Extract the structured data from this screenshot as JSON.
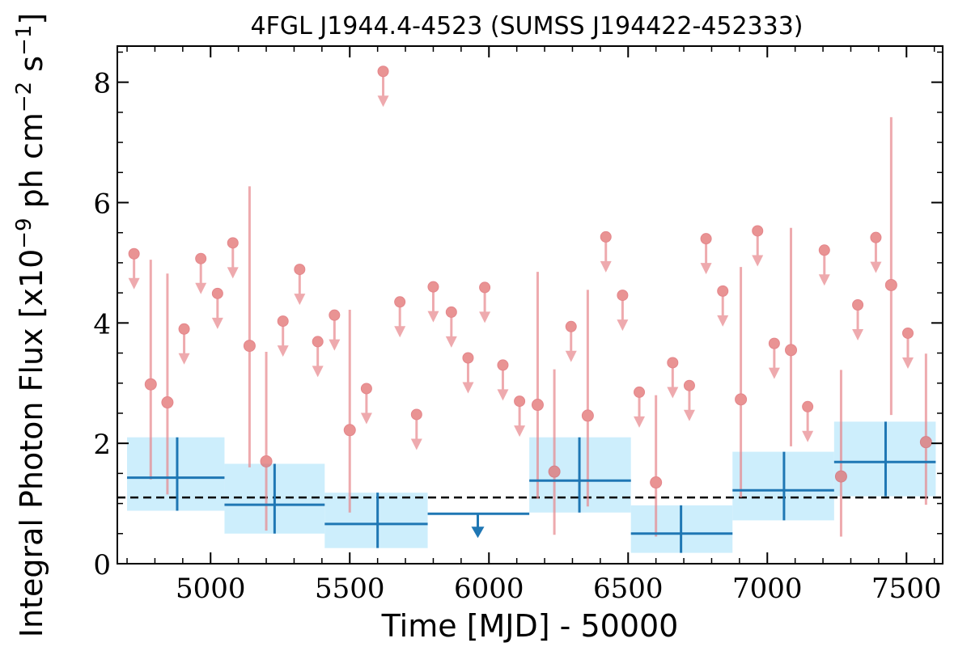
{
  "chart_data": {
    "type": "scatter",
    "title": "4FGL J1944.4-4523 (SUMSS J194422-452333)",
    "xlabel": "Time [MJD] - 50000",
    "ylabel": "Integral Photon Flux [x10",
    "ylabel_exp": "−9",
    "ylabel_unit": " ph cm",
    "ylabel_exp2": "−2",
    "ylabel_unit2": " s",
    "ylabel_exp3": "−1",
    "ylabel_end": "]",
    "xlim": [
      4665,
      7630
    ],
    "ylim": [
      0,
      8.6
    ],
    "xticks": [
      5000,
      5500,
      6000,
      6500,
      7000,
      7500
    ],
    "xtick_labels": [
      "5000",
      "5500",
      "6000",
      "6500",
      "7000",
      "7500"
    ],
    "yticks": [
      0,
      2,
      4,
      6,
      8
    ],
    "ytick_labels": [
      "0",
      "2",
      "4",
      "6",
      "8"
    ],
    "average_flux": 1.1,
    "colors": {
      "fine_bins": "#e8878c",
      "coarse_bins": "#1f77b4",
      "coarse_band": "#cdeefc",
      "average_line": "#000000"
    },
    "fine_bins": {
      "detections": [
        {
          "x": 4785,
          "y": 2.98,
          "lo": 1.4,
          "hi": 5.05
        },
        {
          "x": 4845,
          "y": 2.68,
          "lo": 1.15,
          "hi": 4.82
        },
        {
          "x": 5140,
          "y": 3.62,
          "lo": 1.6,
          "hi": 6.27
        },
        {
          "x": 5200,
          "y": 1.7,
          "lo": 0.55,
          "hi": 3.52
        },
        {
          "x": 5500,
          "y": 2.22,
          "lo": 0.85,
          "hi": 4.22
        },
        {
          "x": 6175,
          "y": 2.64,
          "lo": 1.08,
          "hi": 4.85
        },
        {
          "x": 6235,
          "y": 1.53,
          "lo": 0.48,
          "hi": 3.23
        },
        {
          "x": 6355,
          "y": 2.46,
          "lo": 0.95,
          "hi": 4.55
        },
        {
          "x": 6600,
          "y": 1.35,
          "lo": 0.45,
          "hi": 2.8
        },
        {
          "x": 6905,
          "y": 2.73,
          "lo": 1.1,
          "hi": 4.93
        },
        {
          "x": 7085,
          "y": 3.55,
          "lo": 1.95,
          "hi": 5.58
        },
        {
          "x": 7265,
          "y": 1.45,
          "lo": 0.45,
          "hi": 3.22
        },
        {
          "x": 7445,
          "y": 4.63,
          "lo": 2.47,
          "hi": 7.42
        },
        {
          "x": 7570,
          "y": 2.02,
          "lo": 0.98,
          "hi": 3.49
        }
      ],
      "upper_limits": [
        {
          "x": 4725,
          "y": 5.15
        },
        {
          "x": 4905,
          "y": 3.9
        },
        {
          "x": 4965,
          "y": 5.07
        },
        {
          "x": 5025,
          "y": 4.49
        },
        {
          "x": 5080,
          "y": 5.33
        },
        {
          "x": 5260,
          "y": 4.03
        },
        {
          "x": 5320,
          "y": 4.89
        },
        {
          "x": 5385,
          "y": 3.69
        },
        {
          "x": 5445,
          "y": 4.13
        },
        {
          "x": 5560,
          "y": 2.91
        },
        {
          "x": 5620,
          "y": 8.18
        },
        {
          "x": 5680,
          "y": 4.35
        },
        {
          "x": 5740,
          "y": 2.48
        },
        {
          "x": 5800,
          "y": 4.6
        },
        {
          "x": 5865,
          "y": 4.18
        },
        {
          "x": 5925,
          "y": 3.42
        },
        {
          "x": 5985,
          "y": 4.59
        },
        {
          "x": 6050,
          "y": 3.3
        },
        {
          "x": 6110,
          "y": 2.7
        },
        {
          "x": 6295,
          "y": 3.94
        },
        {
          "x": 6420,
          "y": 5.43
        },
        {
          "x": 6480,
          "y": 4.46
        },
        {
          "x": 6540,
          "y": 2.85
        },
        {
          "x": 6660,
          "y": 3.34
        },
        {
          "x": 6720,
          "y": 2.96
        },
        {
          "x": 6780,
          "y": 5.4
        },
        {
          "x": 6840,
          "y": 4.53
        },
        {
          "x": 6965,
          "y": 5.53
        },
        {
          "x": 7025,
          "y": 3.66
        },
        {
          "x": 7145,
          "y": 2.61
        },
        {
          "x": 7205,
          "y": 5.21
        },
        {
          "x": 7325,
          "y": 4.3
        },
        {
          "x": 7390,
          "y": 5.42
        },
        {
          "x": 7505,
          "y": 3.83
        }
      ]
    },
    "coarse_bins": {
      "detections": [
        {
          "x0": 4700,
          "x1": 5050,
          "xc": 4880,
          "y": 1.43,
          "lo": 0.88,
          "hi": 2.1
        },
        {
          "x0": 5050,
          "x1": 5410,
          "xc": 5230,
          "y": 0.98,
          "lo": 0.5,
          "hi": 1.66
        },
        {
          "x0": 5410,
          "x1": 5780,
          "xc": 5600,
          "y": 0.66,
          "lo": 0.26,
          "hi": 1.18
        },
        {
          "x0": 6145,
          "x1": 6510,
          "xc": 6325,
          "y": 1.38,
          "lo": 0.85,
          "hi": 2.1
        },
        {
          "x0": 6510,
          "x1": 6875,
          "xc": 6690,
          "y": 0.5,
          "lo": 0.18,
          "hi": 0.97
        },
        {
          "x0": 6875,
          "x1": 7240,
          "xc": 7060,
          "y": 1.22,
          "lo": 0.72,
          "hi": 1.86
        },
        {
          "x0": 7240,
          "x1": 7605,
          "xc": 7425,
          "y": 1.69,
          "lo": 1.12,
          "hi": 2.36
        }
      ],
      "upper_limits": [
        {
          "x0": 5780,
          "x1": 6145,
          "xc": 5960,
          "y": 0.83
        }
      ]
    }
  }
}
